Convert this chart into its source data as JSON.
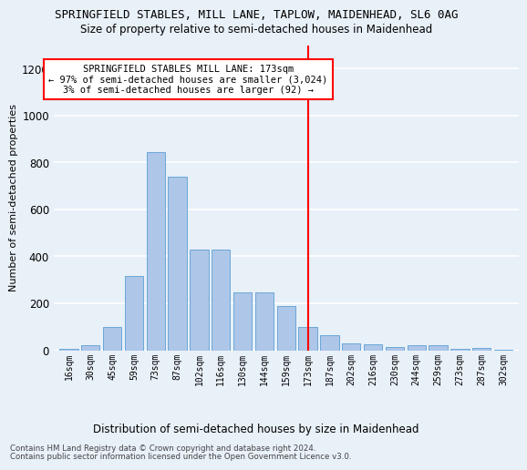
{
  "title1": "SPRINGFIELD STABLES, MILL LANE, TAPLOW, MAIDENHEAD, SL6 0AG",
  "title2": "Size of property relative to semi-detached houses in Maidenhead",
  "xlabel": "Distribution of semi-detached houses by size in Maidenhead",
  "ylabel": "Number of semi-detached properties",
  "footer1": "Contains HM Land Registry data © Crown copyright and database right 2024.",
  "footer2": "Contains public sector information licensed under the Open Government Licence v3.0.",
  "categories": [
    "16sqm",
    "30sqm",
    "45sqm",
    "59sqm",
    "73sqm",
    "87sqm",
    "102sqm",
    "116sqm",
    "130sqm",
    "144sqm",
    "159sqm",
    "173sqm",
    "187sqm",
    "202sqm",
    "216sqm",
    "230sqm",
    "244sqm",
    "259sqm",
    "273sqm",
    "287sqm",
    "302sqm"
  ],
  "values": [
    5,
    20,
    100,
    315,
    845,
    740,
    430,
    430,
    245,
    245,
    190,
    100,
    65,
    30,
    25,
    15,
    20,
    20,
    5,
    10,
    2
  ],
  "bar_color": "#aec6e8",
  "bar_edge_color": "#5a9fd4",
  "vline_index": 11,
  "vline_color": "red",
  "annotation_title": "SPRINGFIELD STABLES MILL LANE: 173sqm",
  "annotation_line1": "← 97% of semi-detached houses are smaller (3,024)",
  "annotation_line2": "3% of semi-detached houses are larger (92) →",
  "ylim": [
    0,
    1300
  ],
  "yticks": [
    0,
    200,
    400,
    600,
    800,
    1000,
    1200
  ],
  "bg_color": "#e8f0f8",
  "grid_color": "white",
  "annotation_box_color": "white",
  "annotation_box_edge": "red"
}
